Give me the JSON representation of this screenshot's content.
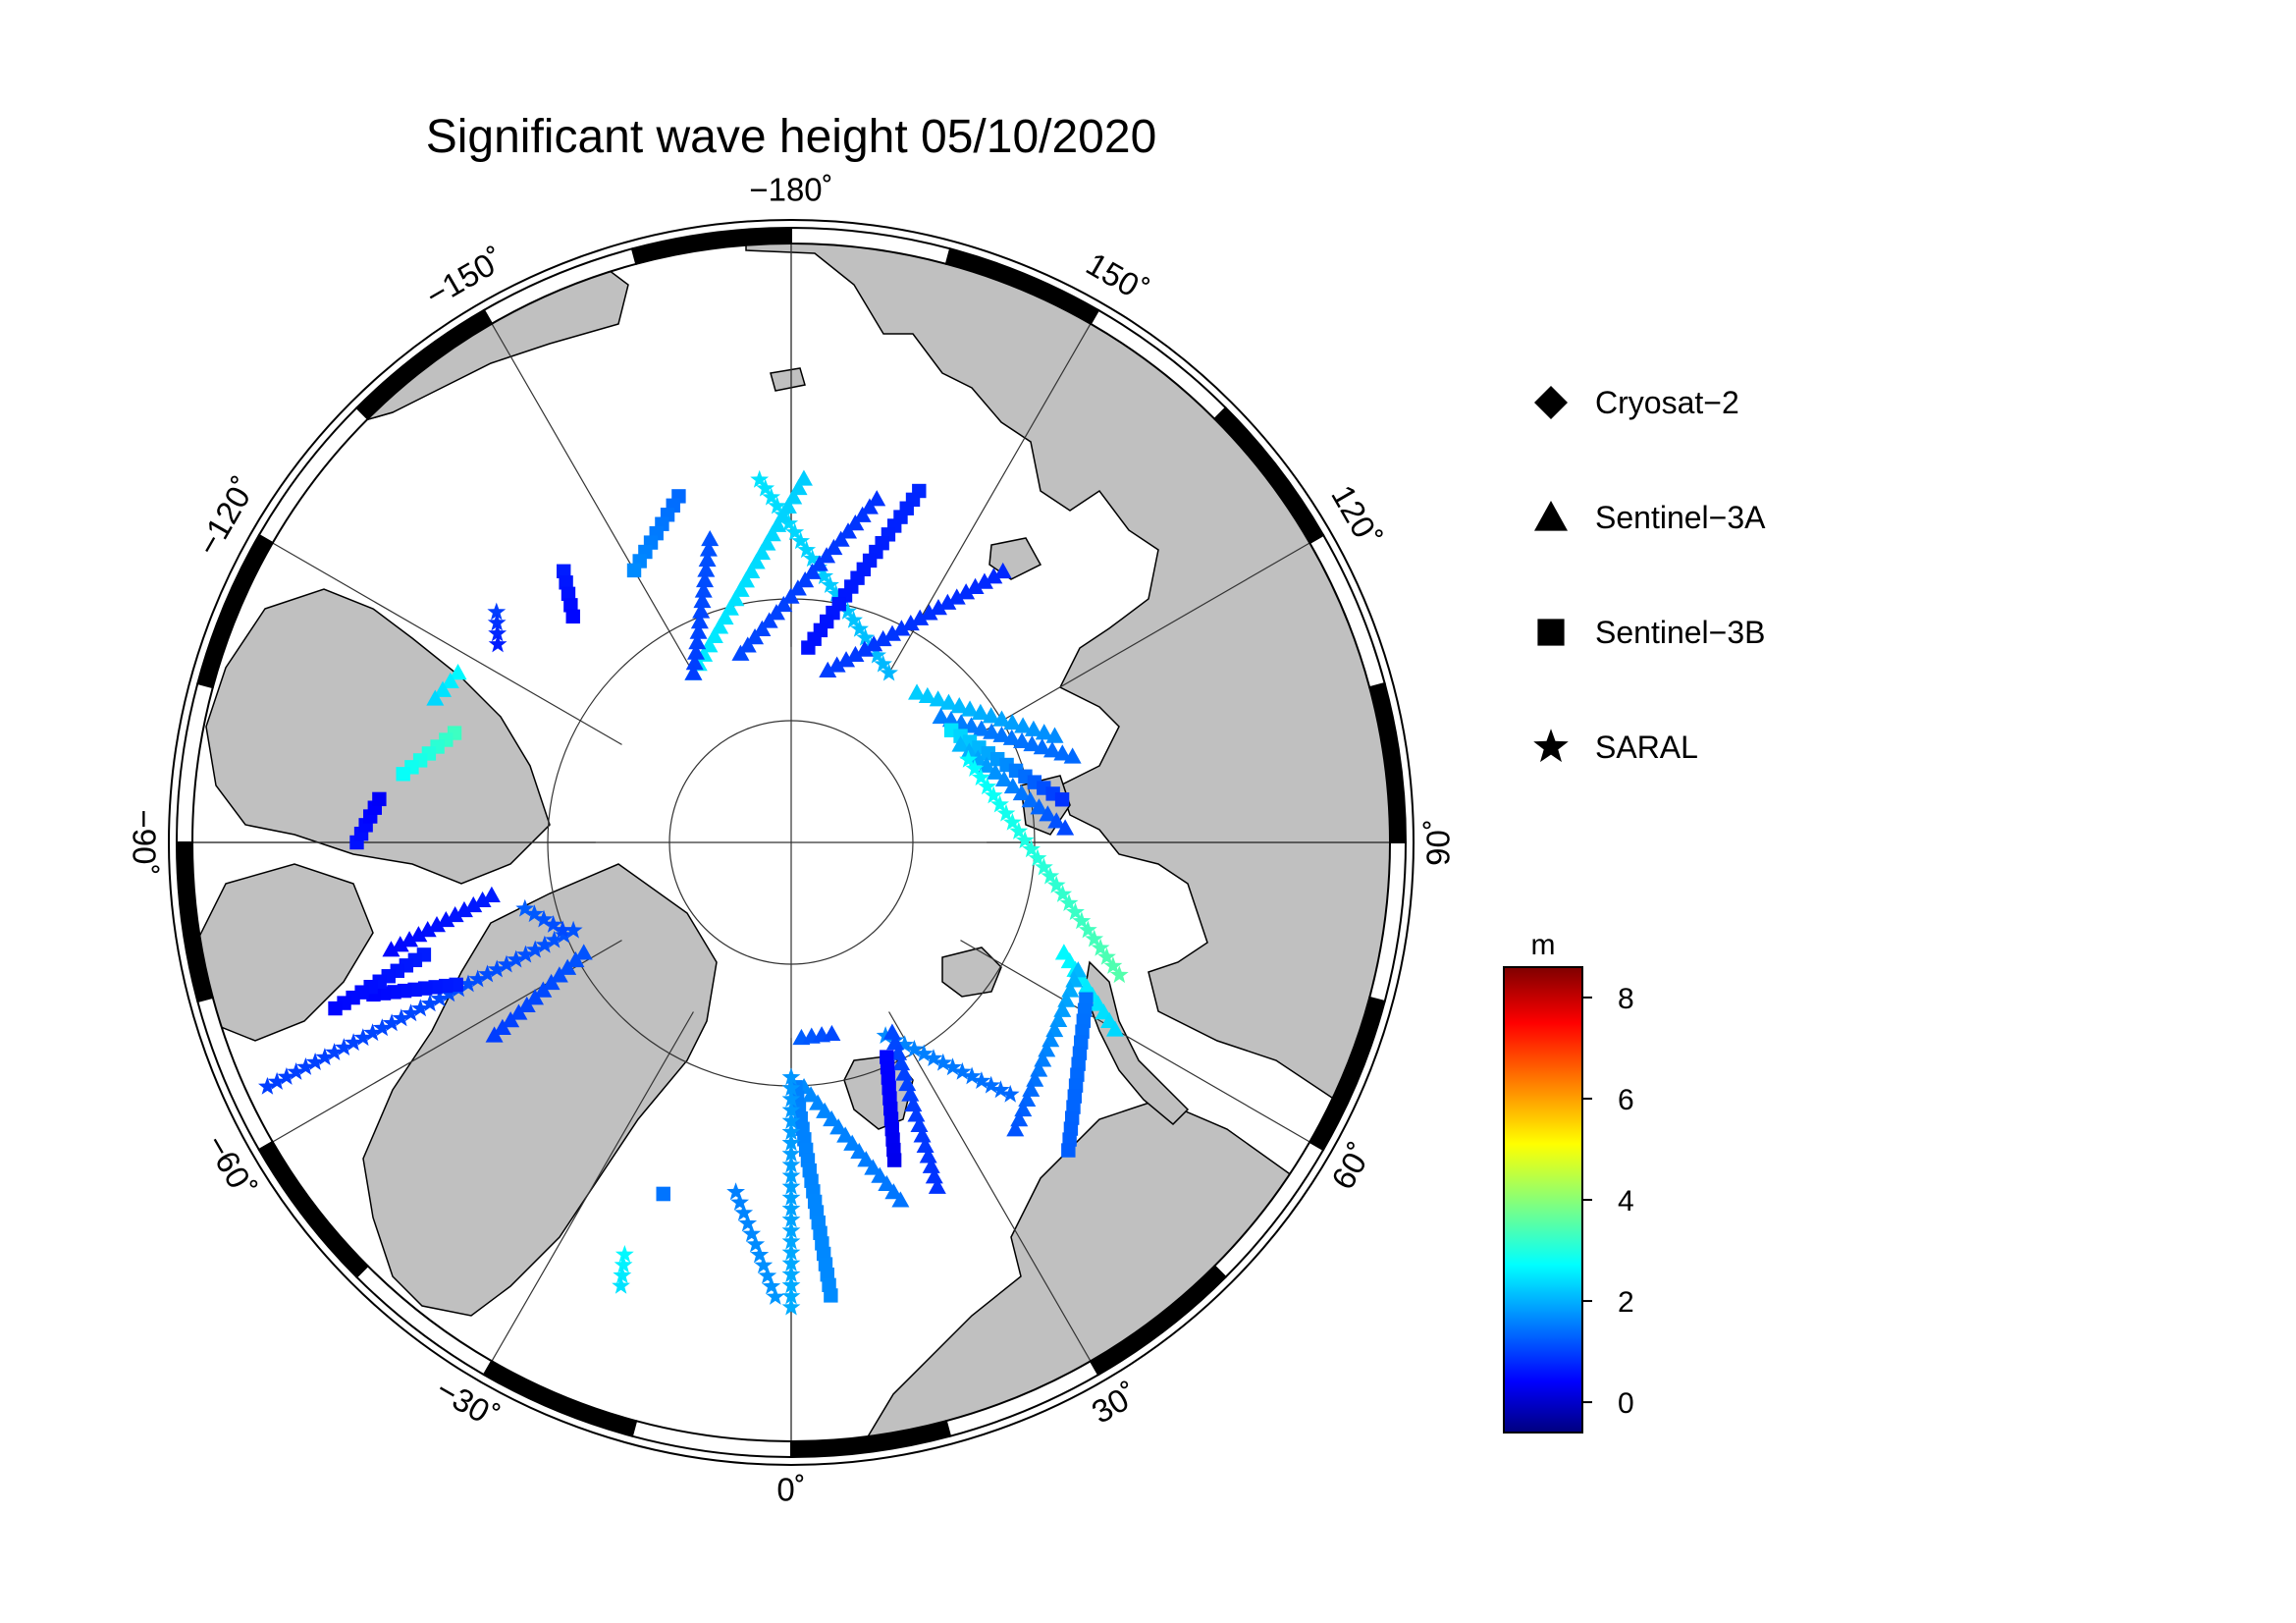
{
  "title": "Significant wave height 05/10/2020",
  "longitude_labels": [
    {
      "lon": -180,
      "text": "−180˚"
    },
    {
      "lon": 150,
      "text": "150˚"
    },
    {
      "lon": 120,
      "text": "120˚"
    },
    {
      "lon": 90,
      "text": "90˚"
    },
    {
      "lon": 60,
      "text": "60˚"
    },
    {
      "lon": 30,
      "text": "30˚"
    },
    {
      "lon": 0,
      "text": "0˚"
    },
    {
      "lon": -30,
      "text": "−30˚"
    },
    {
      "lon": -60,
      "text": "−60˚"
    },
    {
      "lon": -90,
      "text": "−90˚"
    },
    {
      "lon": -120,
      "text": "−120˚"
    },
    {
      "lon": -150,
      "text": "−150˚"
    }
  ],
  "legend": [
    {
      "label": "Cryosat−2",
      "marker": "diamond"
    },
    {
      "label": "Sentinel−3A",
      "marker": "triangle"
    },
    {
      "label": "Sentinel−3B",
      "marker": "square"
    },
    {
      "label": "SARAL",
      "marker": "star"
    }
  ],
  "colorbar": {
    "unit": "m",
    "min": -0.6,
    "max": 8.6,
    "ticks": [
      0,
      2,
      4,
      6,
      8
    ],
    "colormap": "jet"
  },
  "colors": {
    "land": "#c0c0c0",
    "ocean": "#ffffff",
    "frame": "#000000"
  },
  "tracks": [
    {
      "sat": "SARAL",
      "marker": "star",
      "from": {
        "lat": 71.5,
        "lon": -175
      },
      "to": {
        "lat": 80,
        "lon": 150
      },
      "swh": [
        2.6,
        2.2
      ]
    },
    {
      "sat": "Sentinel-3A",
      "marker": "triangle",
      "from": {
        "lat": 71.5,
        "lon": 178
      },
      "to": {
        "lat": 80,
        "lon": -150
      },
      "swh": [
        2.4,
        2.7
      ]
    },
    {
      "sat": "Sentinel-3A",
      "marker": "triangle",
      "from": {
        "lat": 72,
        "lon": 166
      },
      "to": {
        "lat": 80,
        "lon": -165
      },
      "swh": [
        1.0,
        1.2
      ]
    },
    {
      "sat": "Sentinel-3B",
      "marker": "square",
      "from": {
        "lat": 71,
        "lon": 160
      },
      "to": {
        "lat": 80,
        "lon": 175
      },
      "swh": [
        0.9,
        0.7
      ]
    },
    {
      "sat": "Sentinel-3A",
      "marker": "triangle",
      "from": {
        "lat": 72.5,
        "lon": 142
      },
      "to": {
        "lat": 81,
        "lon": 168
      },
      "swh": [
        0.9,
        1.1
      ]
    },
    {
      "sat": "Sentinel-3A",
      "marker": "triangle",
      "from": {
        "lat": 74,
        "lon": -165
      },
      "to": {
        "lat": 80,
        "lon": -150
      },
      "swh": [
        1.3,
        1.1
      ]
    },
    {
      "sat": "Sentinel-3B",
      "marker": "square",
      "from": {
        "lat": 71.5,
        "lon": -162
      },
      "to": {
        "lat": 74,
        "lon": -150
      },
      "swh": [
        1.5,
        1.8
      ]
    },
    {
      "sat": "Sentinel-3B",
      "marker": "square",
      "from": {
        "lat": 72,
        "lon": -140
      },
      "to": {
        "lat": 74,
        "lon": -136
      },
      "swh": [
        0.8,
        0.6
      ]
    },
    {
      "sat": "SARAL",
      "marker": "star",
      "from": {
        "lat": 71,
        "lon": -128
      },
      "to": {
        "lat": 72,
        "lon": -124
      },
      "swh": [
        1.1,
        0.8
      ]
    },
    {
      "sat": "Sentinel-3A",
      "marker": "triangle",
      "from": {
        "lat": 71,
        "lon": -117
      },
      "to": {
        "lat": 70.5,
        "lon": -112
      },
      "swh": [
        2.8,
        2.5
      ]
    },
    {
      "sat": "Sentinel-3B",
      "marker": "square",
      "from": {
        "lat": 72,
        "lon": -108
      },
      "to": {
        "lat": 70,
        "lon": -100
      },
      "swh": [
        3.4,
        2.9
      ]
    },
    {
      "sat": "Sentinel-3A",
      "marker": "triangle",
      "from": {
        "lat": 80,
        "lon": 140
      },
      "to": {
        "lat": 75.5,
        "lon": 112
      },
      "swh": [
        2.4,
        1.8
      ]
    },
    {
      "sat": "Sentinel-3A",
      "marker": "triangle",
      "from": {
        "lat": 80,
        "lon": 130
      },
      "to": {
        "lat": 75,
        "lon": 107
      },
      "swh": [
        1.7,
        1.5
      ]
    },
    {
      "sat": "Sentinel-3B",
      "marker": "square",
      "from": {
        "lat": 80,
        "lon": 125
      },
      "to": {
        "lat": 76,
        "lon": 99
      },
      "swh": [
        2.6,
        1.0
      ]
    },
    {
      "sat": "Sentinel-3A",
      "marker": "triangle",
      "from": {
        "lat": 80,
        "lon": 120
      },
      "to": {
        "lat": 76,
        "lon": 93
      },
      "swh": [
        2.2,
        1.2
      ]
    },
    {
      "sat": "SARAL",
      "marker": "star",
      "from": {
        "lat": 80,
        "lon": 115
      },
      "to": {
        "lat": 72,
        "lon": 68
      },
      "swh": [
        2.8,
        3.6
      ]
    },
    {
      "sat": "Sentinel-3A",
      "marker": "triangle",
      "from": {
        "lat": 75,
        "lon": 68
      },
      "to": {
        "lat": 71,
        "lon": 60
      },
      "swh": [
        2.8,
        2.5
      ]
    },
    {
      "sat": "Sentinel-3A",
      "marker": "triangle",
      "from": {
        "lat": 74,
        "lon": 66
      },
      "to": {
        "lat": 71.5,
        "lon": 38
      },
      "swh": [
        2.2,
        1.3
      ]
    },
    {
      "sat": "Sentinel-3B",
      "marker": "square",
      "from": {
        "lat": 73,
        "lon": 62
      },
      "to": {
        "lat": 69,
        "lon": 42
      },
      "swh": [
        1.6,
        1.4
      ]
    },
    {
      "sat": "SARAL",
      "marker": "star",
      "from": {
        "lat": 79,
        "lon": 26
      },
      "to": {
        "lat": 73,
        "lon": 41
      },
      "swh": [
        1.8,
        1.5
      ]
    },
    {
      "sat": "Sentinel-3A",
      "marker": "triangle",
      "from": {
        "lat": 79,
        "lon": 28
      },
      "to": {
        "lat": 71,
        "lon": 23
      },
      "swh": [
        1.2,
        1.0
      ]
    },
    {
      "sat": "Sentinel-3B",
      "marker": "square",
      "from": {
        "lat": 78,
        "lon": 24
      },
      "to": {
        "lat": 73,
        "lon": 18
      },
      "swh": [
        0.6,
        0.4
      ]
    },
    {
      "sat": "Sentinel-3A",
      "marker": "triangle",
      "from": {
        "lat": 80,
        "lon": 3
      },
      "to": {
        "lat": 80,
        "lon": 12
      },
      "swh": [
        1.4,
        1.2
      ]
    },
    {
      "sat": "Sentinel-3A",
      "marker": "triangle",
      "from": {
        "lat": 77.5,
        "lon": 3
      },
      "to": {
        "lat": 71,
        "lon": 17
      },
      "swh": [
        1.8,
        1.6
      ]
    },
    {
      "sat": "Sentinel-3B",
      "marker": "square",
      "from": {
        "lat": 77.5,
        "lon": 1
      },
      "to": {
        "lat": 67,
        "lon": 5
      },
      "swh": [
        1.7,
        1.8
      ]
    },
    {
      "sat": "SARAL",
      "marker": "star",
      "from": {
        "lat": 78,
        "lon": 0
      },
      "to": {
        "lat": 66.5,
        "lon": 0
      },
      "swh": [
        1.9,
        2.1
      ]
    },
    {
      "sat": "SARAL",
      "marker": "star",
      "from": {
        "lat": 72,
        "lon": -9
      },
      "to": {
        "lat": 67,
        "lon": -2
      },
      "swh": [
        1.7,
        1.9
      ]
    },
    {
      "sat": "Sentinel-3B",
      "marker": "square",
      "from": {
        "lat": 71,
        "lon": -20
      },
      "to": {
        "lat": 71,
        "lon": -20
      },
      "swh": [
        1.6,
        1.6
      ]
    },
    {
      "sat": "SARAL",
      "marker": "star",
      "from": {
        "lat": 67.5,
        "lon": -22
      },
      "to": {
        "lat": 66,
        "lon": -21
      },
      "swh": [
        2.8,
        2.6
      ]
    },
    {
      "sat": "Sentinel-3A",
      "marker": "triangle",
      "from": {
        "lat": 78,
        "lon": -62
      },
      "to": {
        "lat": 72,
        "lon": -57
      },
      "swh": [
        1.3,
        1.1
      ]
    },
    {
      "sat": "SARAL",
      "marker": "star",
      "from": {
        "lat": 78,
        "lon": -68
      },
      "to": {
        "lat": 61,
        "lon": -65
      },
      "swh": [
        1.3,
        1.1
      ]
    },
    {
      "sat": "Sentinel-3B",
      "marker": "square",
      "from": {
        "lat": 71.5,
        "lon": -67
      },
      "to": {
        "lat": 67.5,
        "lon": -70
      },
      "swh": [
        0.8,
        0.6
      ]
    },
    {
      "sat": "Sentinel-3B",
      "marker": "square",
      "from": {
        "lat": 70.5,
        "lon": -73
      },
      "to": {
        "lat": 65.5,
        "lon": -70
      },
      "swh": [
        0.8,
        0.6
      ]
    },
    {
      "sat": "Sentinel-3A",
      "marker": "triangle",
      "from": {
        "lat": 74.5,
        "lon": -80
      },
      "to": {
        "lat": 69,
        "lon": -75
      },
      "swh": [
        0.8,
        0.6
      ]
    },
    {
      "sat": "SARAL",
      "marker": "star",
      "from": {
        "lat": 76,
        "lon": -76
      },
      "to": {
        "lat": 77.5,
        "lon": -69
      },
      "swh": [
        1.4,
        1.2
      ]
    },
    {
      "sat": "Sentinel-3B",
      "marker": "square",
      "from": {
        "lat": 68,
        "lon": -90
      },
      "to": {
        "lat": 69,
        "lon": -96
      },
      "swh": [
        0.7,
        0.5
      ]
    }
  ]
}
